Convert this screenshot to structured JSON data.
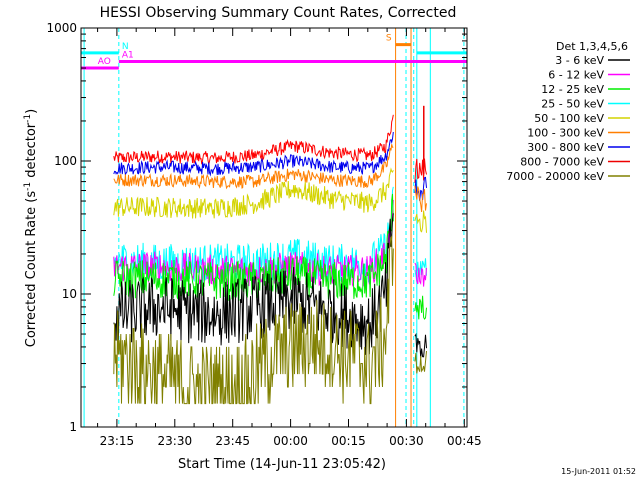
{
  "chart_data": {
    "type": "line",
    "title": "HESSI Observing Summary Count Rates, Corrected",
    "xlabel": "Start Time (14-Jun-11 23:05:42)",
    "ylabel_main": "Corrected Count Rate (s",
    "ylabel_sup1": "-1",
    "ylabel_mid": " detector",
    "ylabel_sup2": "-1",
    "ylabel_end": ")",
    "yscale": "log",
    "ylim": [
      1,
      1000
    ],
    "xlim_minutes": [
      0,
      100
    ],
    "x_ticks": [
      {
        "label": "23:15",
        "min": 9.3
      },
      {
        "label": "23:30",
        "min": 24.3
      },
      {
        "label": "23:45",
        "min": 39.3
      },
      {
        "label": "00:00",
        "min": 54.3
      },
      {
        "label": "00:15",
        "min": 69.3
      },
      {
        "label": "00:30",
        "min": 84.3
      },
      {
        "label": "00:45",
        "min": 99.3
      }
    ],
    "y_ticks": [
      {
        "label": "1",
        "value": 1
      },
      {
        "label": "10",
        "value": 10
      },
      {
        "label": "100",
        "value": 100
      },
      {
        "label": "1000",
        "value": 1000
      }
    ],
    "legend": {
      "header": "Det 1,3,4,5,6",
      "entries": [
        {
          "label": "3 - 6 keV",
          "color": "#000000"
        },
        {
          "label": "6 - 12 keV",
          "color": "#ff00ff"
        },
        {
          "label": "12 - 25 keV",
          "color": "#00ee00"
        },
        {
          "label": "25 - 50 keV",
          "color": "#00ffff"
        },
        {
          "label": "50 - 100 keV",
          "color": "#d4d400"
        },
        {
          "label": "100 - 300 keV",
          "color": "#ff7f00"
        },
        {
          "label": "300 - 800 keV",
          "color": "#0000ee"
        },
        {
          "label": "800 - 7000 keV",
          "color": "#ee0000"
        },
        {
          "label": "7000 - 20000 keV",
          "color": "#808000"
        }
      ]
    },
    "series": [
      {
        "color": "#ff0000",
        "profile": [
          [
            8.5,
            105
          ],
          [
            20,
            108
          ],
          [
            35,
            105
          ],
          [
            45,
            110
          ],
          [
            55,
            130
          ],
          [
            65,
            115
          ],
          [
            75,
            110
          ],
          [
            79,
            130
          ],
          [
            81,
            220
          ]
        ],
        "noise": 0.05
      },
      {
        "color": "#0000ee",
        "profile": [
          [
            8.5,
            88
          ],
          [
            20,
            90
          ],
          [
            35,
            88
          ],
          [
            45,
            90
          ],
          [
            55,
            100
          ],
          [
            65,
            90
          ],
          [
            75,
            88
          ],
          [
            79,
            110
          ],
          [
            81,
            165
          ]
        ],
        "noise": 0.05
      },
      {
        "color": "#ff7f00",
        "profile": [
          [
            8.5,
            72
          ],
          [
            20,
            72
          ],
          [
            35,
            70
          ],
          [
            45,
            70
          ],
          [
            55,
            80
          ],
          [
            65,
            72
          ],
          [
            75,
            70
          ],
          [
            79,
            90
          ],
          [
            81,
            140
          ]
        ],
        "noise": 0.05
      },
      {
        "color": "#d4d400",
        "profile": [
          [
            8.5,
            45
          ],
          [
            20,
            45
          ],
          [
            35,
            44
          ],
          [
            45,
            48
          ],
          [
            55,
            62
          ],
          [
            65,
            52
          ],
          [
            75,
            48
          ],
          [
            79,
            60
          ],
          [
            81,
            80
          ]
        ],
        "noise": 0.08
      },
      {
        "color": "#00ffff",
        "profile": [
          [
            8.5,
            18
          ],
          [
            20,
            17
          ],
          [
            35,
            17
          ],
          [
            45,
            17
          ],
          [
            55,
            19
          ],
          [
            65,
            17
          ],
          [
            75,
            17
          ],
          [
            79,
            22
          ],
          [
            81,
            50
          ]
        ],
        "noise": 0.15
      },
      {
        "color": "#ff00ff",
        "profile": [
          [
            8.5,
            16
          ],
          [
            20,
            16
          ],
          [
            35,
            15
          ],
          [
            45,
            15
          ],
          [
            55,
            16
          ],
          [
            65,
            15
          ],
          [
            75,
            15
          ],
          [
            79,
            20
          ],
          [
            81,
            40
          ]
        ],
        "noise": 0.12
      },
      {
        "color": "#00ee00",
        "profile": [
          [
            8.5,
            13
          ],
          [
            20,
            13
          ],
          [
            35,
            12.5
          ],
          [
            45,
            12.5
          ],
          [
            55,
            14
          ],
          [
            65,
            12.5
          ],
          [
            75,
            12.5
          ],
          [
            79,
            18
          ],
          [
            81,
            50
          ]
        ],
        "noise": 0.15
      },
      {
        "color": "#000000",
        "profile": [
          [
            8.5,
            7
          ],
          [
            20,
            8
          ],
          [
            35,
            7
          ],
          [
            45,
            8
          ],
          [
            55,
            9
          ],
          [
            65,
            7.5
          ],
          [
            75,
            6
          ],
          [
            79,
            10
          ],
          [
            81,
            45
          ]
        ],
        "noise": 0.25
      },
      {
        "color": "#808000",
        "profile": [
          [
            8.5,
            3.5
          ],
          [
            20,
            2.5
          ],
          [
            30,
            2
          ],
          [
            40,
            2
          ],
          [
            50,
            3.5
          ],
          [
            60,
            4.5
          ],
          [
            70,
            3.5
          ],
          [
            75,
            3
          ],
          [
            79,
            5
          ],
          [
            81,
            30
          ]
        ],
        "noise": 0.35
      }
    ],
    "after_series": [
      {
        "color": "#ff0000",
        "value": 85
      },
      {
        "color": "#0000ee",
        "value": 62
      },
      {
        "color": "#ff7f00",
        "value": 52
      },
      {
        "color": "#d4d400",
        "value": 35
      },
      {
        "color": "#00ffff",
        "value": 15
      },
      {
        "color": "#ff00ff",
        "value": 14
      },
      {
        "color": "#00ee00",
        "value": 8
      },
      {
        "color": "#000000",
        "value": 4
      },
      {
        "color": "#808000",
        "value": 3
      }
    ],
    "state_bars": [
      {
        "label": "N",
        "color": "#00ffff",
        "value": 650,
        "segments": [
          [
            0,
            9.8
          ],
          [
            87,
            100
          ]
        ]
      },
      {
        "label": "AO",
        "color": "#ff00ff",
        "value": 500,
        "segments": [
          [
            0,
            9.8
          ]
        ]
      },
      {
        "label": "A1",
        "color": "#ff00ff",
        "value": 560,
        "segments": [
          [
            9.8,
            100
          ]
        ]
      },
      {
        "label": "S",
        "color": "#ff7f00",
        "value": 750,
        "segments": [
          [
            81.5,
            85.5
          ]
        ]
      }
    ],
    "footer_date": "15-Jun-2011 01:52"
  }
}
